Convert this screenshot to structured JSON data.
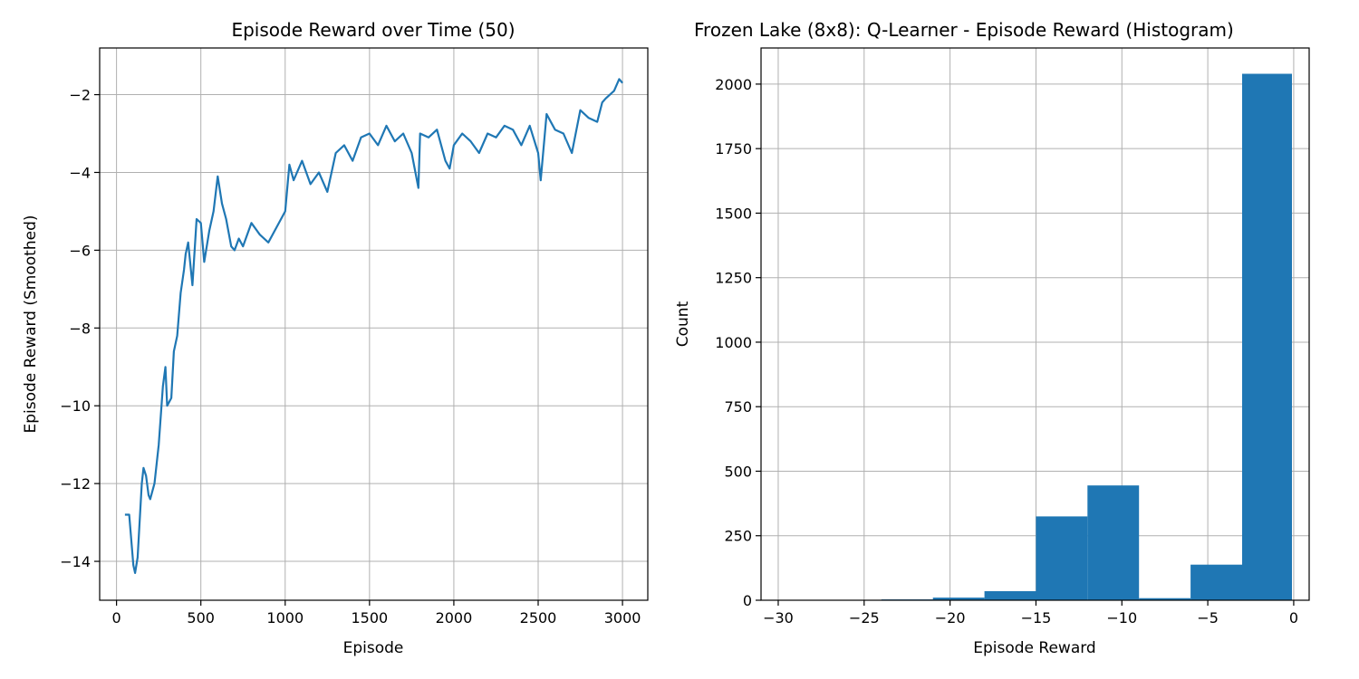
{
  "chart_data": [
    {
      "type": "line",
      "title": "Episode Reward over Time (50)",
      "xlabel": "Episode",
      "ylabel": "Episode Reward (Smoothed)",
      "xlim": [
        -100,
        3150
      ],
      "ylim": [
        -15.0,
        -0.8
      ],
      "xticks": [
        0,
        500,
        1000,
        1500,
        2000,
        2500,
        3000
      ],
      "xtick_labels": [
        "0",
        "500",
        "1000",
        "1500",
        "2000",
        "2500",
        "3000"
      ],
      "yticks": [
        -14,
        -12,
        -10,
        -8,
        -6,
        -4,
        -2
      ],
      "ytick_labels": [
        "−14",
        "−12",
        "−10",
        "−8",
        "−6",
        "−4",
        "−2"
      ],
      "grid": true,
      "color": "#1f77b4",
      "series": [
        {
          "x": [
            50,
            75,
            100,
            110,
            125,
            150,
            160,
            175,
            190,
            200,
            225,
            250,
            275,
            290,
            300,
            325,
            340,
            360,
            380,
            400,
            410,
            425,
            450,
            475,
            500,
            520,
            550,
            575,
            600,
            625,
            650,
            680,
            700,
            725,
            750,
            800,
            850,
            900,
            950,
            1000,
            1025,
            1050,
            1100,
            1150,
            1200,
            1250,
            1300,
            1350,
            1400,
            1450,
            1500,
            1550,
            1600,
            1650,
            1700,
            1750,
            1790,
            1800,
            1850,
            1900,
            1950,
            1975,
            2000,
            2050,
            2100,
            2150,
            2200,
            2250,
            2300,
            2350,
            2400,
            2450,
            2500,
            2515,
            2550,
            2600,
            2650,
            2700,
            2750,
            2800,
            2850,
            2880,
            2900,
            2950,
            2980,
            3000
          ],
          "y": [
            -12.8,
            -12.8,
            -14.1,
            -14.3,
            -13.9,
            -12.0,
            -11.6,
            -11.8,
            -12.3,
            -12.4,
            -12.0,
            -11.0,
            -9.5,
            -9.0,
            -10.0,
            -9.8,
            -8.6,
            -8.2,
            -7.1,
            -6.5,
            -6.1,
            -5.8,
            -6.9,
            -5.2,
            -5.3,
            -6.3,
            -5.5,
            -5.0,
            -4.1,
            -4.8,
            -5.2,
            -5.9,
            -6.0,
            -5.7,
            -5.9,
            -5.3,
            -5.6,
            -5.8,
            -5.4,
            -5.0,
            -3.8,
            -4.2,
            -3.7,
            -4.3,
            -4.0,
            -4.5,
            -3.5,
            -3.3,
            -3.7,
            -3.1,
            -3.0,
            -3.3,
            -2.8,
            -3.2,
            -3.0,
            -3.5,
            -4.4,
            -3.0,
            -3.1,
            -2.9,
            -3.7,
            -3.9,
            -3.3,
            -3.0,
            -3.2,
            -3.5,
            -3.0,
            -3.1,
            -2.8,
            -2.9,
            -3.3,
            -2.8,
            -3.5,
            -4.2,
            -2.5,
            -2.9,
            -3.0,
            -3.5,
            -2.4,
            -2.6,
            -2.7,
            -2.2,
            -2.1,
            -1.9,
            -1.6,
            -1.7
          ]
        }
      ]
    },
    {
      "type": "bar",
      "title": "Frozen Lake (8x8): Q-Learner - Episode Reward (Histogram)",
      "xlabel": "Episode Reward",
      "ylabel": "Count",
      "xlim": [
        -31.0,
        0.9
      ],
      "ylim": [
        0,
        2140
      ],
      "xticks": [
        -30,
        -25,
        -20,
        -15,
        -10,
        -5,
        0
      ],
      "xtick_labels": [
        "−30",
        "−25",
        "−20",
        "−15",
        "−10",
        "−5",
        "0"
      ],
      "yticks": [
        0,
        250,
        500,
        750,
        1000,
        1250,
        1500,
        1750,
        2000
      ],
      "ytick_labels": [
        "0",
        "250",
        "500",
        "750",
        "1000",
        "1250",
        "1500",
        "1750",
        "2000"
      ],
      "grid": true,
      "color": "#1f77b4",
      "bins": [
        {
          "x0": -30.0,
          "x1": -27.0,
          "value": 1
        },
        {
          "x0": -27.0,
          "x1": -24.0,
          "value": 1
        },
        {
          "x0": -24.0,
          "x1": -21.0,
          "value": 3
        },
        {
          "x0": -21.0,
          "x1": -18.0,
          "value": 10
        },
        {
          "x0": -18.0,
          "x1": -15.0,
          "value": 35
        },
        {
          "x0": -15.0,
          "x1": -12.0,
          "value": 325
        },
        {
          "x0": -12.0,
          "x1": -9.0,
          "value": 445
        },
        {
          "x0": -9.0,
          "x1": -6.0,
          "value": 8
        },
        {
          "x0": -6.0,
          "x1": -3.0,
          "value": 138
        },
        {
          "x0": -3.0,
          "x1": -0.1,
          "value": 2040
        }
      ]
    }
  ]
}
